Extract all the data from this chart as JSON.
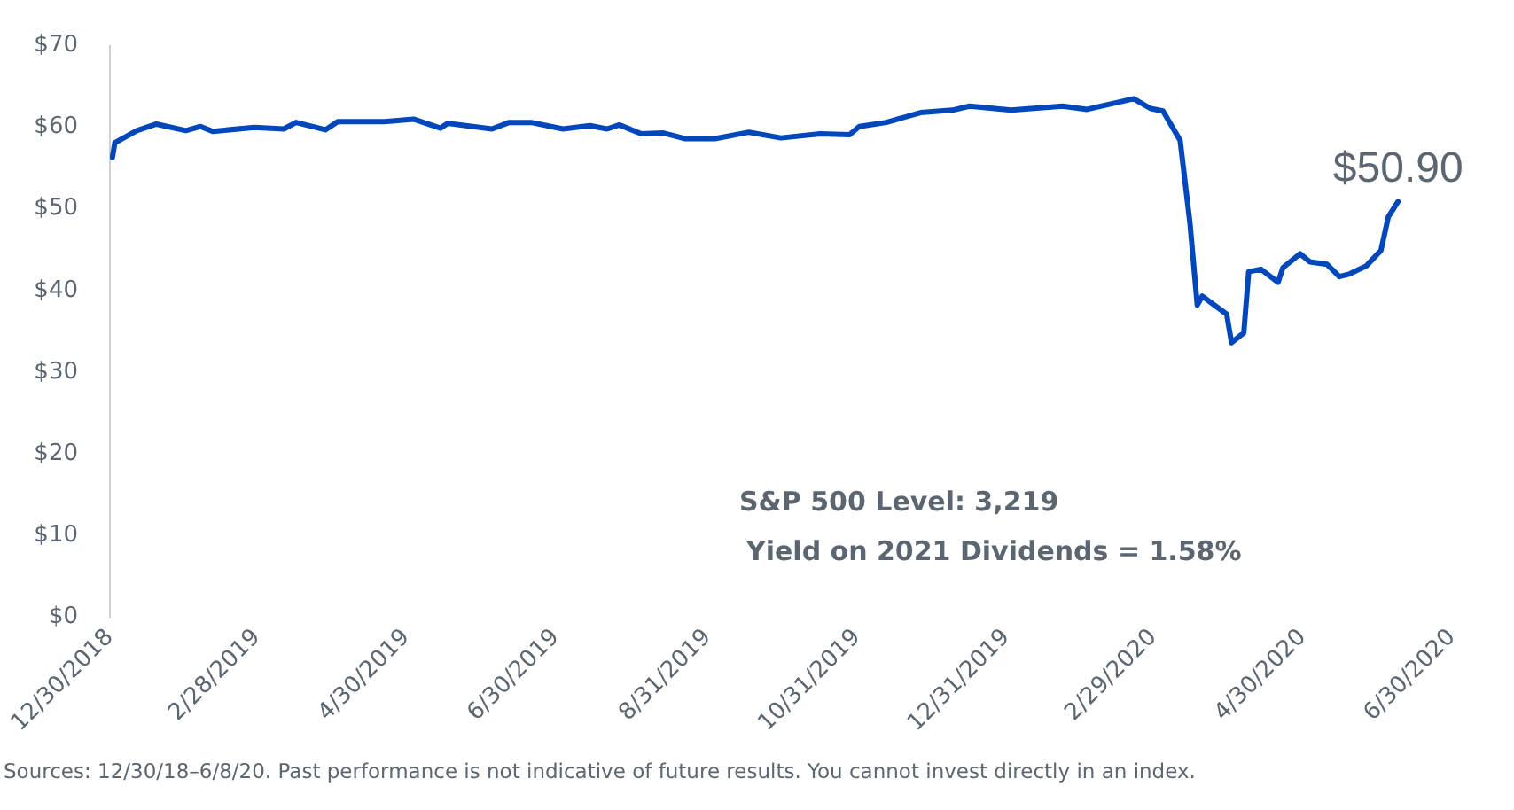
{
  "chart_data": {
    "type": "line",
    "x": [
      "2018-12-31",
      "2019-01-01",
      "2019-01-10",
      "2019-01-18",
      "2019-01-30",
      "2019-02-05",
      "2019-02-10",
      "2019-02-27",
      "2019-03-11",
      "2019-03-16",
      "2019-03-28",
      "2019-04-02",
      "2019-04-21",
      "2019-05-03",
      "2019-05-14",
      "2019-05-17",
      "2019-06-04",
      "2019-06-11",
      "2019-06-20",
      "2019-07-03",
      "2019-07-14",
      "2019-07-21",
      "2019-07-26",
      "2019-08-04",
      "2019-08-13",
      "2019-08-22",
      "2019-09-03",
      "2019-09-17",
      "2019-09-30",
      "2019-10-16",
      "2019-10-28",
      "2019-11-01",
      "2019-11-12",
      "2019-11-26",
      "2019-12-09",
      "2019-12-16",
      "2020-01-02",
      "2020-01-23",
      "2020-02-02",
      "2020-02-21",
      "2020-02-28",
      "2020-03-04",
      "2020-03-11",
      "2020-03-15",
      "2020-03-18",
      "2020-03-20",
      "2020-03-30",
      "2020-04-01",
      "2020-04-06",
      "2020-04-08",
      "2020-04-13",
      "2020-04-20",
      "2020-04-22",
      "2020-04-29",
      "2020-05-03",
      "2020-05-10",
      "2020-05-15",
      "2020-05-19",
      "2020-05-26",
      "2020-06-01",
      "2020-06-04",
      "2020-06-08"
    ],
    "series": [
      {
        "color": "#0047bb",
        "values": [
          56.3,
          58.1,
          59.6,
          60.4,
          59.6,
          60.1,
          59.5,
          60,
          59.8,
          60.6,
          59.7,
          60.7,
          60.7,
          61,
          59.9,
          60.5,
          59.8,
          60.6,
          60.6,
          59.8,
          60.2,
          59.8,
          60.3,
          59.2,
          59.3,
          58.6,
          58.6,
          59.4,
          58.7,
          59.2,
          59.1,
          60.1,
          60.6,
          61.8,
          62.1,
          62.6,
          62.1,
          62.6,
          62.2,
          63.5,
          62.3,
          62,
          58.4,
          48.3,
          38.2,
          39.3,
          37.1,
          33.6,
          34.8,
          42.3,
          42.6,
          41,
          42.8,
          44.5,
          43.5,
          43.2,
          41.7,
          42,
          43,
          44.9,
          49,
          50.9
        ]
      }
    ],
    "xlim": [
      "2018-12-30",
      "2020-06-30"
    ],
    "xticks": [
      {
        "value": "2018-12-30",
        "label": "12/30/2018"
      },
      {
        "value": "2019-02-28",
        "label": "2/28/2019"
      },
      {
        "value": "2019-04-30",
        "label": "4/30/2019"
      },
      {
        "value": "2019-06-30",
        "label": "6/30/2019"
      },
      {
        "value": "2019-08-31",
        "label": "8/31/2019"
      },
      {
        "value": "2019-10-31",
        "label": "10/31/2019"
      },
      {
        "value": "2019-12-31",
        "label": "12/31/2019"
      },
      {
        "value": "2020-02-29",
        "label": "2/29/2020"
      },
      {
        "value": "2020-04-30",
        "label": "4/30/2020"
      },
      {
        "value": "2020-06-30",
        "label": "6/30/2020"
      }
    ],
    "ylim": [
      0,
      70
    ],
    "yticks": [
      {
        "value": 0,
        "label": "$0"
      },
      {
        "value": 10,
        "label": "$10"
      },
      {
        "value": 20,
        "label": "$20"
      },
      {
        "value": 30,
        "label": "$30"
      },
      {
        "value": 40,
        "label": "$40"
      },
      {
        "value": 50,
        "label": "$50"
      },
      {
        "value": 60,
        "label": "$60"
      },
      {
        "value": 70,
        "label": "$70"
      }
    ],
    "grid": false,
    "legend": false,
    "marker": "none",
    "line_style": "solid",
    "annotations": [
      {
        "text": "$50.90",
        "x": "2020-06-08",
        "y": 50.9
      },
      "S&P 500 Level: 3,219",
      "Yield on 2021 Dividends = 1.58%",
      "Sources: 12/30/18–6/8/20. Past performance is not indicative of future results. You cannot invest directly in an index."
    ]
  }
}
